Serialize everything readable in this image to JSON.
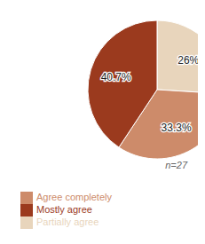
{
  "chart_data": {
    "type": "pie",
    "categories": [
      "Partially agree",
      "Agree completely",
      "Mostly agree"
    ],
    "values": [
      26.0,
      33.3,
      40.7
    ],
    "value_labels": [
      "26%",
      "33.3%",
      "40.7%"
    ],
    "colors": [
      "#e8d5bc",
      "#cd8b6a",
      "#9b3a1e"
    ],
    "data_labels": true,
    "legend": "bottom",
    "annotations": [
      "n=27"
    ]
  }
}
